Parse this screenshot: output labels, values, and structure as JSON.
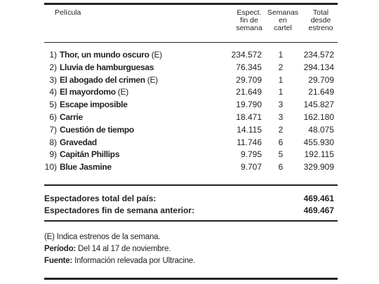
{
  "header": {
    "pelicula": "Película",
    "espect_l1": "Espect.",
    "espect_l2": "fin de",
    "espect_l3": "semana",
    "semanas_l1": "Semanas",
    "semanas_l2": "en",
    "semanas_l3": "cartel",
    "total_l1": "Total",
    "total_l2": "desde",
    "total_l3": "estreno"
  },
  "rows": [
    {
      "rank": "1)",
      "title": "Thor, un mundo oscuro",
      "tag": "(E)",
      "espect": "234.572",
      "semanas": "1",
      "total": "234.572"
    },
    {
      "rank": "2)",
      "title": "Lluvia de hamburguesas",
      "tag": "",
      "espect": "76.345",
      "semanas": "2",
      "total": "294.134"
    },
    {
      "rank": "3)",
      "title": "El abogado del crimen",
      "tag": "(E)",
      "espect": "29.709",
      "semanas": "1",
      "total": "29.709"
    },
    {
      "rank": "4)",
      "title": "El mayordomo",
      "tag": "(E)",
      "espect": "21.649",
      "semanas": "1",
      "total": "21.649"
    },
    {
      "rank": "5)",
      "title": "Escape imposible",
      "tag": "",
      "espect": "19.790",
      "semanas": "3",
      "total": "145.827"
    },
    {
      "rank": "6)",
      "title": "Carrie",
      "tag": "",
      "espect": "18.471",
      "semanas": "3",
      "total": "162.180"
    },
    {
      "rank": "7)",
      "title": "Cuestión de tiempo",
      "tag": "",
      "espect": "14.115",
      "semanas": "2",
      "total": "48.075"
    },
    {
      "rank": "8)",
      "title": "Gravedad",
      "tag": "",
      "espect": "11.746",
      "semanas": "6",
      "total": "455.930"
    },
    {
      "rank": "9)",
      "title": "Capitán Phillips",
      "tag": "",
      "espect": "9.795",
      "semanas": "5",
      "total": "192.115"
    },
    {
      "rank": "10)",
      "title": "Blue Jasmine",
      "tag": "",
      "espect": "9.707",
      "semanas": "6",
      "total": "329.909"
    }
  ],
  "totals": {
    "pais_label": "Espectadores total del país:",
    "pais_value": "469.461",
    "anterior_label": "Espectadores fin de semana anterior:",
    "anterior_value": "469.467"
  },
  "notes": {
    "estrenos": "(E) Indica estrenos de la semana.",
    "periodo_label": "Período:",
    "periodo_text": " Del 14 al 17 de noviembre.",
    "fuente_label": "Fuente:",
    "fuente_text": " Información relevada por Ultracine."
  }
}
